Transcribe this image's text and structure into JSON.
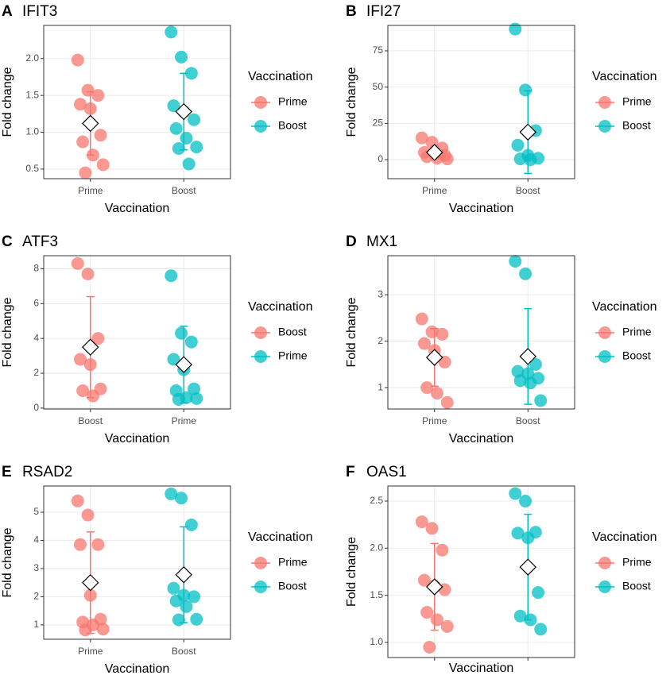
{
  "chart_data": [
    {
      "type": "strip",
      "tag": "A",
      "title": "IFIT3",
      "ylabel": "Fold change",
      "xlabel": "Vaccination",
      "legend_title": "Vaccination",
      "grid": true,
      "categories": [
        "Prime",
        "Boost"
      ],
      "ylim": [
        0.37,
        2.45
      ],
      "yticks": [
        0.5,
        {
          "value": 1,
          "label": "1.0"
        },
        1.5,
        {
          "value": 2,
          "label": "2.0"
        }
      ],
      "series": [
        {
          "name": "Prime",
          "color": "#f8766d",
          "values": [
            1.98,
            1.57,
            1.5,
            1.38,
            1.32,
            0.96,
            0.87,
            0.69,
            0.56,
            0.45
          ],
          "mean": 1.12,
          "error": 0.43
        },
        {
          "name": "Boost",
          "color": "#00bfc4",
          "values": [
            2.36,
            2.02,
            1.8,
            1.36,
            1.28,
            1.17,
            1.05,
            0.92,
            0.8,
            0.78,
            0.57
          ],
          "mean": 1.28,
          "error": 0.52
        }
      ]
    },
    {
      "type": "strip",
      "tag": "B",
      "title": "IFI27",
      "ylabel": "Fold change",
      "xlabel": "Vaccination",
      "legend_title": "Vaccination",
      "grid": true,
      "categories": [
        "Prime",
        "Boost"
      ],
      "ylim": [
        -13.1,
        92.5
      ],
      "yticks": [
        0,
        25,
        50,
        75
      ],
      "series": [
        {
          "name": "Prime",
          "color": "#f8766d",
          "values": [
            15,
            12,
            8,
            5,
            4,
            3,
            2,
            1,
            0.5
          ],
          "mean": 5,
          "error": 4.5
        },
        {
          "name": "Boost",
          "color": "#00bfc4",
          "values": [
            90,
            48,
            20,
            10,
            3,
            1,
            0.5,
            0
          ],
          "mean": 19,
          "error": 28.5
        }
      ]
    },
    {
      "type": "strip",
      "tag": "C",
      "title": "ATF3",
      "ylabel": "Fold change",
      "xlabel": "Vaccination",
      "legend_title": "Vaccination",
      "grid": true,
      "categories": [
        "Boost",
        "Prime"
      ],
      "ylim": [
        -0.05,
        8.75
      ],
      "yticks": [
        0,
        2,
        4,
        6,
        8
      ],
      "series": [
        {
          "name": "Boost",
          "color": "#f8766d",
          "values": [
            8.3,
            7.7,
            4.0,
            2.8,
            2.5,
            1.1,
            1.0,
            0.7
          ],
          "mean": 3.5,
          "error": 2.9
        },
        {
          "name": "Prime",
          "color": "#00bfc4",
          "values": [
            7.6,
            4.3,
            3.8,
            2.8,
            2.2,
            1.1,
            1.0,
            0.6,
            0.55,
            0.5
          ],
          "mean": 2.5,
          "error": 2.2
        }
      ]
    },
    {
      "type": "strip",
      "tag": "D",
      "title": "MX1",
      "ylabel": "Fold change",
      "xlabel": "Vaccination",
      "legend_title": "Vaccination",
      "grid": true,
      "categories": [
        "Prime",
        "Boost"
      ],
      "ylim": [
        0.54,
        3.84
      ],
      "yticks": [
        1,
        2,
        3
      ],
      "series": [
        {
          "name": "Prime",
          "color": "#f8766d",
          "values": [
            2.48,
            2.2,
            2.15,
            1.95,
            1.8,
            1.55,
            1.0,
            0.88,
            0.68
          ],
          "mean": 1.65,
          "error": 0.62
        },
        {
          "name": "Boost",
          "color": "#00bfc4",
          "values": [
            3.72,
            3.45,
            1.5,
            1.35,
            1.3,
            1.2,
            1.15,
            1.1,
            0.72
          ],
          "mean": 1.67,
          "error": 1.03
        }
      ]
    },
    {
      "type": "strip",
      "tag": "E",
      "title": "RSAD2",
      "ylabel": "Fold change",
      "xlabel": "Vaccination",
      "legend_title": "Vaccination",
      "grid": true,
      "categories": [
        "Prime",
        "Boost"
      ],
      "ylim": [
        0.49,
        5.93
      ],
      "yticks": [
        1,
        2,
        3,
        4,
        5
      ],
      "series": [
        {
          "name": "Prime",
          "color": "#f8766d",
          "values": [
            5.4,
            4.9,
            3.85,
            3.85,
            2.05,
            1.2,
            1.1,
            1.0,
            0.85,
            0.82
          ],
          "mean": 2.5,
          "error": 1.8
        },
        {
          "name": "Boost",
          "color": "#00bfc4",
          "values": [
            5.65,
            5.5,
            4.55,
            2.3,
            2.05,
            2.0,
            1.85,
            1.65,
            1.2,
            1.18
          ],
          "mean": 2.78,
          "error": 1.7
        }
      ]
    },
    {
      "type": "strip",
      "tag": "F",
      "title": "OAS1",
      "ylabel": "Fold change",
      "xlabel": "Vaccination",
      "legend_title": "Vaccination",
      "grid": true,
      "categories": [
        null,
        null
      ],
      "ylim": [
        0.84,
        2.66
      ],
      "yticks": [
        {
          "value": 1,
          "label": "1.0"
        },
        1.5,
        {
          "value": 2,
          "label": "2.0"
        },
        2.5
      ],
      "series": [
        {
          "name": "Prime",
          "color": "#f8766d",
          "values": [
            2.28,
            2.21,
            1.98,
            1.66,
            1.6,
            1.56,
            1.32,
            1.24,
            1.17,
            0.95
          ],
          "mean": 1.59,
          "error": 0.46
        },
        {
          "name": "Boost",
          "color": "#00bfc4",
          "values": [
            2.58,
            2.5,
            2.17,
            2.16,
            2.11,
            1.53,
            1.28,
            1.24,
            1.14
          ],
          "mean": 1.8,
          "error": 0.56
        }
      ]
    }
  ]
}
